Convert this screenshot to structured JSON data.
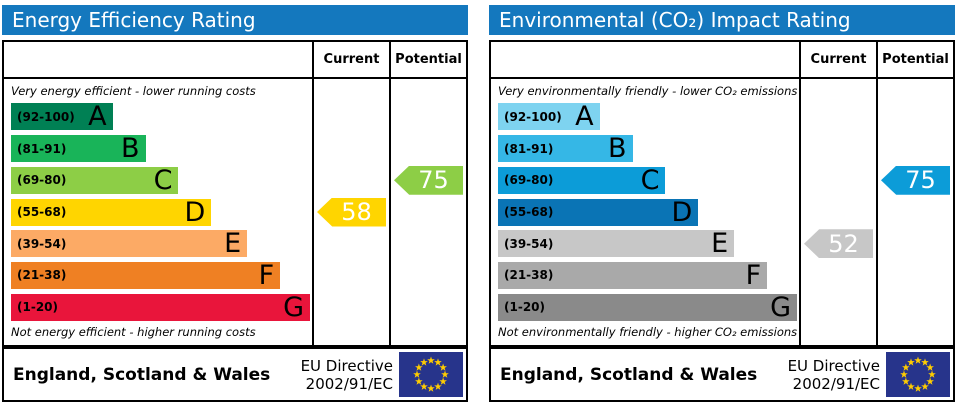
{
  "page": {
    "background": "#ffffff",
    "header_blue": "#1478be"
  },
  "flag_colors": {
    "background": "#27348b",
    "stars": "#ffcc00"
  },
  "chart_data": [
    {
      "type": "bar",
      "title": "Energy Efficiency Rating",
      "top_caption": "Very energy efficient - lower running costs",
      "bottom_caption": "Not energy efficient - higher running costs",
      "col_headers": [
        "Current",
        "Potential"
      ],
      "ylim": [
        1,
        100
      ],
      "bands": [
        {
          "letter": "A",
          "label": "(92-100)",
          "range": [
            92,
            100
          ],
          "color": "#008054",
          "width_pct": 34
        },
        {
          "letter": "B",
          "label": "(81-91)",
          "range": [
            81,
            91
          ],
          "color": "#19b459",
          "width_pct": 45
        },
        {
          "letter": "C",
          "label": "(69-80)",
          "range": [
            69,
            80
          ],
          "color": "#8dce46",
          "width_pct": 56
        },
        {
          "letter": "D",
          "label": "(55-68)",
          "range": [
            55,
            68
          ],
          "color": "#ffd500",
          "width_pct": 67
        },
        {
          "letter": "E",
          "label": "(39-54)",
          "range": [
            39,
            54
          ],
          "color": "#fcaa65",
          "width_pct": 79
        },
        {
          "letter": "F",
          "label": "(21-38)",
          "range": [
            21,
            38
          ],
          "color": "#ef8023",
          "width_pct": 90
        },
        {
          "letter": "G",
          "label": "(1-20)",
          "range": [
            1,
            20
          ],
          "color": "#e9153b",
          "width_pct": 100
        }
      ],
      "markers": [
        {
          "column": "Current",
          "value": 58,
          "band": "D",
          "color": "#ffd500"
        },
        {
          "column": "Potential",
          "value": 75,
          "band": "C",
          "color": "#8dce46"
        }
      ],
      "footer": {
        "region": "England, Scotland & Wales",
        "directive_line1": "EU Directive",
        "directive_line2": "2002/91/EC"
      }
    },
    {
      "type": "bar",
      "title": "Environmental (CO₂) Impact Rating",
      "top_caption": "Very environmentally friendly - lower CO₂ emissions",
      "bottom_caption": "Not environmentally friendly - higher CO₂ emissions",
      "col_headers": [
        "Current",
        "Potential"
      ],
      "ylim": [
        1,
        100
      ],
      "bands": [
        {
          "letter": "A",
          "label": "(92-100)",
          "range": [
            92,
            100
          ],
          "color": "#7ed3f0",
          "width_pct": 34
        },
        {
          "letter": "B",
          "label": "(81-91)",
          "range": [
            81,
            91
          ],
          "color": "#35b7e6",
          "width_pct": 45
        },
        {
          "letter": "C",
          "label": "(69-80)",
          "range": [
            69,
            80
          ],
          "color": "#0c9cd8",
          "width_pct": 56
        },
        {
          "letter": "D",
          "label": "(55-68)",
          "range": [
            55,
            68
          ],
          "color": "#0a74b5",
          "width_pct": 67
        },
        {
          "letter": "E",
          "label": "(39-54)",
          "range": [
            39,
            54
          ],
          "color": "#c7c7c7",
          "width_pct": 79
        },
        {
          "letter": "F",
          "label": "(21-38)",
          "range": [
            21,
            38
          ],
          "color": "#a9a9a9",
          "width_pct": 90
        },
        {
          "letter": "G",
          "label": "(1-20)",
          "range": [
            1,
            20
          ],
          "color": "#8a8a8a",
          "width_pct": 100
        }
      ],
      "markers": [
        {
          "column": "Current",
          "value": 52,
          "band": "E",
          "color": "#c7c7c7"
        },
        {
          "column": "Potential",
          "value": 75,
          "band": "C",
          "color": "#0c9cd8"
        }
      ],
      "footer": {
        "region": "England, Scotland & Wales",
        "directive_line1": "EU Directive",
        "directive_line2": "2002/91/EC"
      }
    }
  ]
}
